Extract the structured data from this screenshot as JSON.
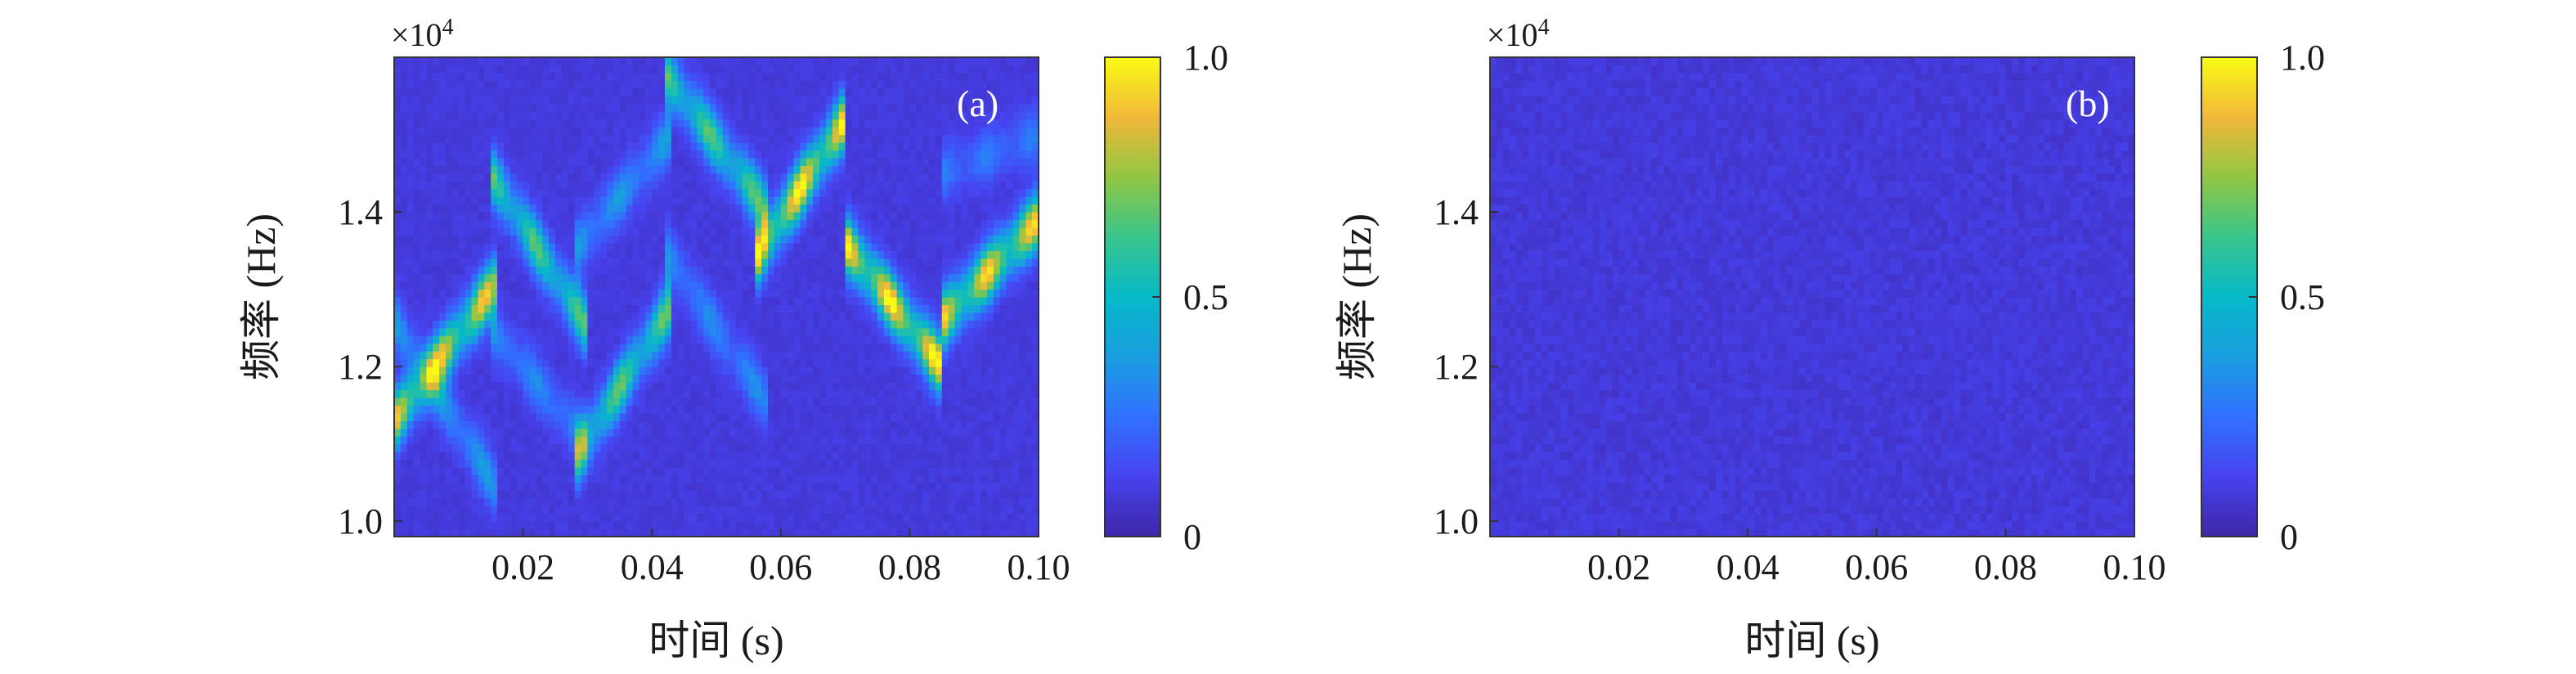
{
  "chart_data": [
    {
      "type": "heatmap",
      "panel_label": "(a)",
      "xlabel": "时间 (s)",
      "ylabel": "频率 (Hz)",
      "y_exponent": "×10",
      "y_exponent_power": "4",
      "xlim": [
        0.0,
        0.1
      ],
      "ylim": [
        0.98,
        1.6
      ],
      "x_ticks": [
        0.02,
        0.04,
        0.06,
        0.08,
        0.1
      ],
      "x_tick_labels": [
        "0.02",
        "0.04",
        "0.06",
        "0.08",
        "0.10"
      ],
      "y_ticks": [
        1.0,
        1.2,
        1.4
      ],
      "y_tick_labels": [
        "1.0",
        "1.2",
        "1.4"
      ],
      "colorbar": {
        "range": [
          0,
          1
        ],
        "ticks": [
          0,
          0.5,
          1.0
        ],
        "tick_labels": [
          "0",
          "0.5",
          "1.0"
        ],
        "colormap": "parula"
      },
      "ridges": [
        {
          "t_start": 0.0,
          "t_end": 0.016,
          "f_start": 1.13,
          "f_end": 1.31,
          "amplitude": 0.85
        },
        {
          "t_start": 0.0,
          "t_end": 0.016,
          "f_start": 1.26,
          "f_end": 1.04,
          "amplitude": 0.3
        },
        {
          "t_start": 0.015,
          "t_end": 0.03,
          "f_start": 1.45,
          "f_end": 1.25,
          "amplitude": 0.6
        },
        {
          "t_start": 0.015,
          "t_end": 0.03,
          "f_start": 1.25,
          "f_end": 1.1,
          "amplitude": 0.25
        },
        {
          "t_start": 0.028,
          "t_end": 0.043,
          "f_start": 1.08,
          "f_end": 1.28,
          "amplitude": 0.62
        },
        {
          "t_start": 0.028,
          "t_end": 0.043,
          "f_start": 1.35,
          "f_end": 1.5,
          "amplitude": 0.3
        },
        {
          "t_start": 0.042,
          "t_end": 0.058,
          "f_start": 1.58,
          "f_end": 1.4,
          "amplitude": 0.6
        },
        {
          "t_start": 0.042,
          "t_end": 0.058,
          "f_start": 1.35,
          "f_end": 1.15,
          "amplitude": 0.25
        },
        {
          "t_start": 0.056,
          "t_end": 0.07,
          "f_start": 1.34,
          "f_end": 1.52,
          "amplitude": 0.95
        },
        {
          "t_start": 0.07,
          "t_end": 0.085,
          "f_start": 1.36,
          "f_end": 1.2,
          "amplitude": 0.95
        },
        {
          "t_start": 0.085,
          "t_end": 0.1,
          "f_start": 1.26,
          "f_end": 1.39,
          "amplitude": 0.88
        },
        {
          "t_start": 0.085,
          "t_end": 0.1,
          "f_start": 1.45,
          "f_end": 1.5,
          "amplitude": 0.2
        }
      ]
    },
    {
      "type": "heatmap",
      "panel_label": "(b)",
      "xlabel": "时间 (s)",
      "ylabel": "频率 (Hz)",
      "y_exponent": "×10",
      "y_exponent_power": "4",
      "xlim": [
        0.0,
        0.1
      ],
      "ylim": [
        0.98,
        1.6
      ],
      "x_ticks": [
        0.02,
        0.04,
        0.06,
        0.08,
        0.1
      ],
      "x_tick_labels": [
        "0.02",
        "0.04",
        "0.06",
        "0.08",
        "0.10"
      ],
      "y_ticks": [
        1.0,
        1.2,
        1.4
      ],
      "y_tick_labels": [
        "1.0",
        "1.2",
        "1.4"
      ],
      "colorbar": {
        "range": [
          0,
          1
        ],
        "ticks": [
          0,
          0.5,
          1.0
        ],
        "tick_labels": [
          "0",
          "0.5",
          "1.0"
        ],
        "colormap": "parula"
      },
      "background_level": 0.06,
      "noise_level": 0.05
    }
  ]
}
